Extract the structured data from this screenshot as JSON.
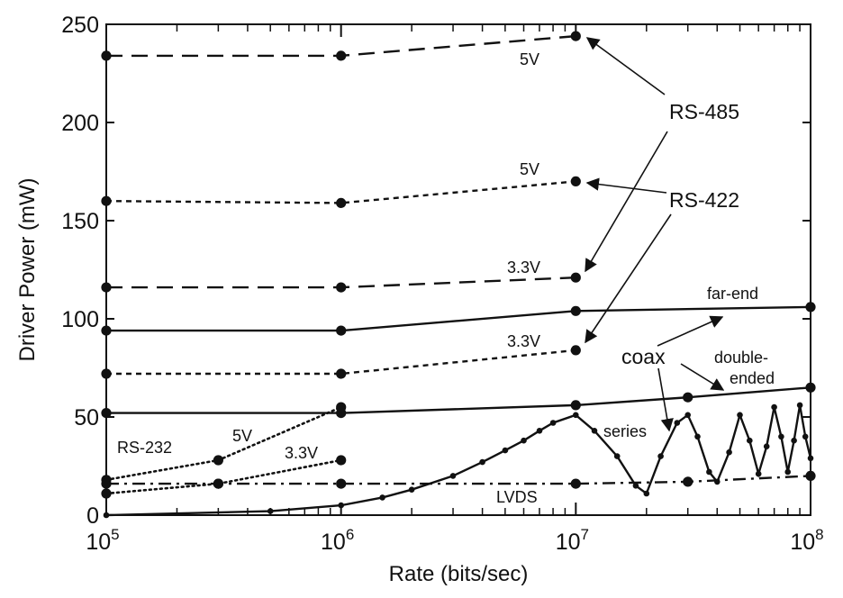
{
  "chart_data": {
    "type": "line",
    "xlabel": "Rate (bits/sec)",
    "ylabel": "Driver Power (mW)",
    "xscale": "log",
    "xlim": [
      100000,
      100000000
    ],
    "ylim": [
      0,
      250
    ],
    "x_ticks": [
      {
        "base": "10",
        "exp": "5"
      },
      {
        "base": "10",
        "exp": "6"
      },
      {
        "base": "10",
        "exp": "7"
      },
      {
        "base": "10",
        "exp": "8"
      }
    ],
    "y_ticks": [
      "0",
      "50",
      "100",
      "150",
      "200",
      "250"
    ],
    "grid": false,
    "series": [
      {
        "style": "dashed",
        "points": [
          [
            100000,
            234
          ],
          [
            1000000,
            234
          ],
          [
            10000000,
            244
          ]
        ]
      },
      {
        "style": "dashed",
        "points": [
          [
            100000,
            116
          ],
          [
            1000000,
            116
          ],
          [
            10000000,
            121
          ]
        ]
      },
      {
        "style": "short-dashed",
        "points": [
          [
            100000,
            160
          ],
          [
            1000000,
            159
          ],
          [
            10000000,
            170
          ]
        ]
      },
      {
        "style": "short-dashed",
        "points": [
          [
            100000,
            72
          ],
          [
            1000000,
            72
          ],
          [
            10000000,
            84
          ]
        ]
      },
      {
        "style": "solid",
        "points": [
          [
            100000,
            94
          ],
          [
            1000000,
            94
          ],
          [
            10000000,
            104
          ],
          [
            100000000,
            106
          ]
        ]
      },
      {
        "style": "solid",
        "points": [
          [
            100000,
            52
          ],
          [
            1000000,
            52
          ],
          [
            10000000,
            56
          ],
          [
            30000000,
            60
          ],
          [
            100000000,
            65
          ]
        ]
      },
      {
        "style": "dotted",
        "points": [
          [
            100000,
            18
          ],
          [
            300000,
            28
          ],
          [
            1000000,
            55
          ]
        ]
      },
      {
        "style": "dotted",
        "points": [
          [
            100000,
            11
          ],
          [
            300000,
            16
          ],
          [
            1000000,
            28
          ]
        ]
      },
      {
        "style": "dash-dot",
        "points": [
          [
            100000,
            16
          ],
          [
            300000,
            16
          ],
          [
            1000000,
            16
          ],
          [
            10000000,
            16
          ],
          [
            30000000,
            17
          ],
          [
            100000000,
            20
          ]
        ]
      },
      {
        "style": "solid-dense-markers",
        "points": [
          [
            100000,
            0
          ],
          [
            500000,
            2
          ],
          [
            1000000,
            5
          ],
          [
            1500000,
            9
          ],
          [
            2000000,
            13
          ],
          [
            3000000,
            20
          ],
          [
            4000000,
            27
          ],
          [
            5000000,
            33
          ],
          [
            6000000,
            38
          ],
          [
            7000000,
            43
          ],
          [
            8000000,
            47
          ],
          [
            10000000,
            51
          ],
          [
            12000000,
            43
          ],
          [
            15000000,
            30
          ],
          [
            18000000,
            15
          ],
          [
            20000000,
            11
          ],
          [
            23000000,
            30
          ],
          [
            27000000,
            47
          ],
          [
            30000000,
            51
          ],
          [
            33000000,
            40
          ],
          [
            37000000,
            22
          ],
          [
            40000000,
            17
          ],
          [
            45000000,
            32
          ],
          [
            50000000,
            51
          ],
          [
            55000000,
            38
          ],
          [
            60000000,
            21
          ],
          [
            65000000,
            35
          ],
          [
            70000000,
            55
          ],
          [
            75000000,
            40
          ],
          [
            80000000,
            22
          ],
          [
            85000000,
            38
          ],
          [
            90000000,
            56
          ],
          [
            95000000,
            40
          ],
          [
            100000000,
            29
          ]
        ]
      }
    ],
    "annotations": [
      {
        "text": "RS-485",
        "size": "big"
      },
      {
        "text": "RS-422",
        "size": "big"
      },
      {
        "text": "5V",
        "size": "small"
      },
      {
        "text": "5V",
        "size": "small"
      },
      {
        "text": "3.3V",
        "size": "small"
      },
      {
        "text": "3.3V",
        "size": "small"
      },
      {
        "text": "far-end",
        "size": "small"
      },
      {
        "text": "coax",
        "size": "big"
      },
      {
        "text": "double-",
        "size": "small"
      },
      {
        "text": "ended",
        "size": "small"
      },
      {
        "text": "series",
        "size": "small"
      },
      {
        "text": "RS-232",
        "size": "small"
      },
      {
        "text": "5V",
        "size": "small"
      },
      {
        "text": "3.3V",
        "size": "small"
      },
      {
        "text": "LVDS",
        "size": "small"
      }
    ]
  }
}
